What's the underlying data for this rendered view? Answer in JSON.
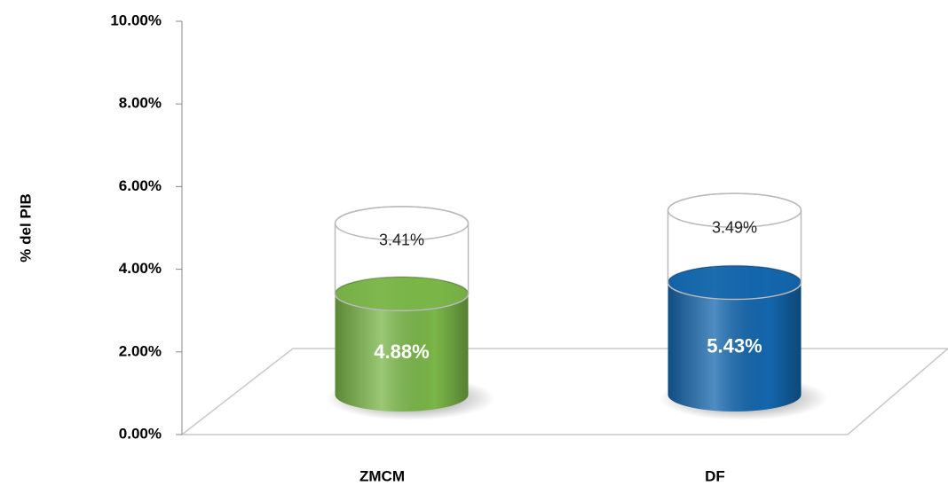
{
  "chart_data": {
    "type": "cylinder_stacked_bar",
    "y_label": "% del PIB",
    "categories": [
      "ZMCM",
      "DF"
    ],
    "series": [
      {
        "color": "#7ab648",
        "values": [
          4.88,
          5.43
        ],
        "value_labels": [
          "4.88%",
          "5.43%"
        ]
      },
      {
        "color": "#ffffff",
        "values": [
          3.41,
          3.49
        ],
        "value_labels": [
          "3.41%",
          "3.49%"
        ]
      }
    ],
    "ylim": [
      0,
      10
    ],
    "yticks": [
      {
        "value": 0,
        "label": "0.00%"
      },
      {
        "value": 2,
        "label": "2.00%"
      },
      {
        "value": 4,
        "label": "4.00%"
      },
      {
        "value": 6,
        "label": "6.00%"
      },
      {
        "value": 8,
        "label": "8.00%"
      },
      {
        "value": 10,
        "label": "10.00%"
      }
    ],
    "point_colors": [
      [
        "#7ab648",
        "#1466ad"
      ],
      [
        "#ffffff",
        "#ffffff"
      ]
    ]
  }
}
